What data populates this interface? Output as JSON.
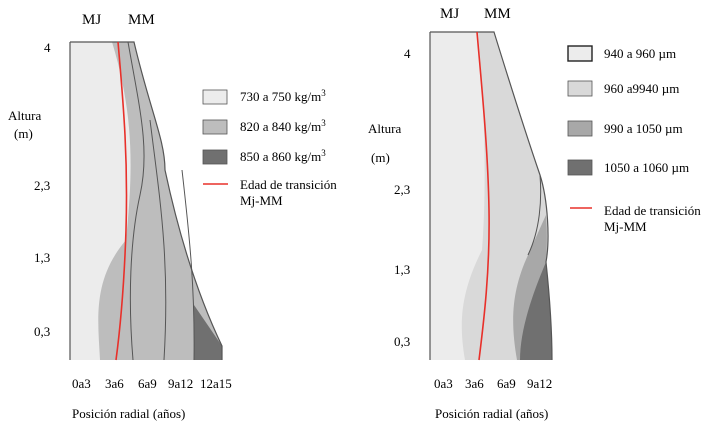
{
  "colors": {
    "band1": "#ececec",
    "band2": "#d9d9d9",
    "band3": "#bdbdbd",
    "band4": "#a8a8a8",
    "band5": "#707070",
    "transition": "#e8302a",
    "stroke": "#555555"
  },
  "left_panel": {
    "top_labels": {
      "mj": "MJ",
      "mm": "MM"
    },
    "y_axis": {
      "label_line1": "Altura",
      "label_line2": "(m)",
      "ticks": [
        "4",
        "2,3",
        "1,3",
        "0,3"
      ]
    },
    "x_axis": {
      "label": "Posición radial (años)",
      "ticks": [
        "0a3",
        "3a6",
        "6a9",
        "9a12",
        "12a15"
      ]
    },
    "legend": [
      {
        "label": "730 a 750 kg/m",
        "sup": "3"
      },
      {
        "label": "820 a 840 kg/m",
        "sup": "3"
      },
      {
        "label": "850 a 860 kg/m",
        "sup": "3"
      },
      {
        "label": "Edad de transición",
        "label2": "Mj-MM"
      }
    ]
  },
  "right_panel": {
    "top_labels": {
      "mj": "MJ",
      "mm": "MM"
    },
    "y_axis": {
      "label_line1": "Altura",
      "label_line2": "(m)",
      "ticks": [
        "4",
        "2,3",
        "1,3",
        "0,3"
      ]
    },
    "x_axis": {
      "label": "Posición radial (años)",
      "ticks": [
        "0a3",
        "3a6",
        "6a9",
        "9a12"
      ]
    },
    "legend": [
      {
        "label": "940 a 960 µm"
      },
      {
        "label": "960 a9940 µm"
      },
      {
        "label": "990 a 1050 µm"
      },
      {
        "label": "1050 a 1060 µm"
      },
      {
        "label": "Edad de transición",
        "label2": "Mj-MM"
      }
    ]
  }
}
